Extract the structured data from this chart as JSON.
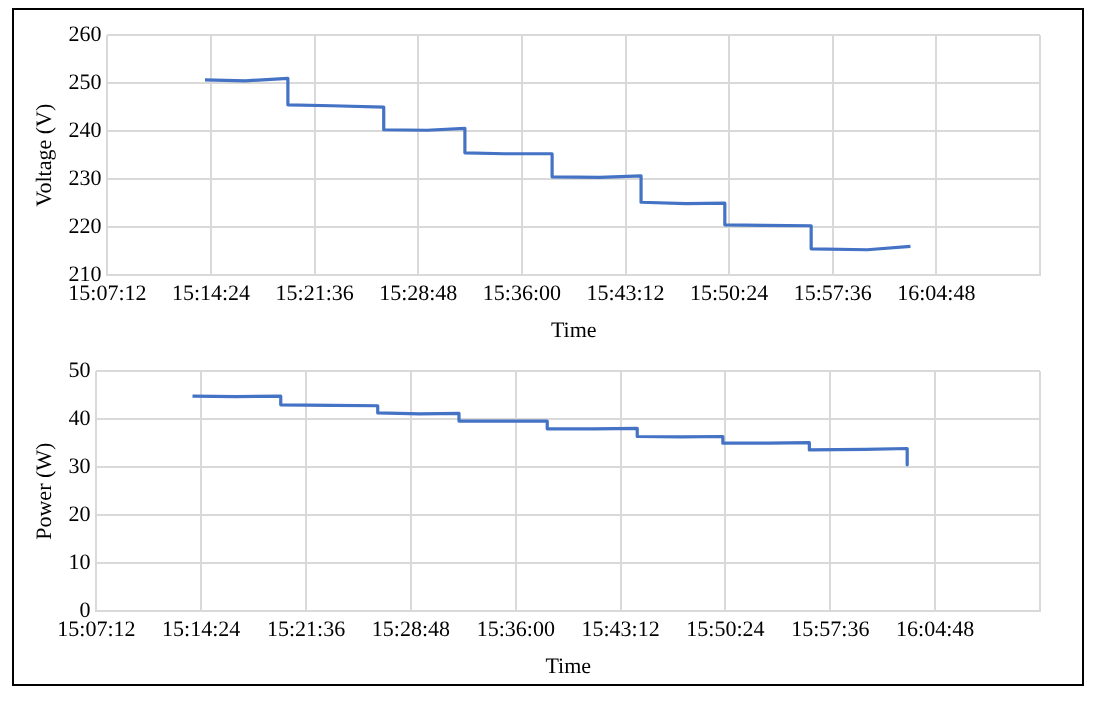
{
  "chart_data": [
    {
      "type": "line",
      "xlabel": "Time",
      "ylabel": "Voltage (V)",
      "grid": true,
      "legend": false,
      "marker": "none",
      "xlim": [
        15.12,
        16.2
      ],
      "xticks": [
        {
          "value": 15.12,
          "label": "15:07:12"
        },
        {
          "value": 15.24,
          "label": "15:14:24"
        },
        {
          "value": 15.36,
          "label": "15:21:36"
        },
        {
          "value": 15.48,
          "label": "15:28:48"
        },
        {
          "value": 15.6,
          "label": "15:36:00"
        },
        {
          "value": 15.72,
          "label": "15:43:12"
        },
        {
          "value": 15.84,
          "label": "15:50:24"
        },
        {
          "value": 15.96,
          "label": "15:57:36"
        },
        {
          "value": 16.08,
          "label": "16:04:48"
        },
        {
          "value": 16.2,
          "label": null
        }
      ],
      "ylim": [
        210,
        260
      ],
      "yticks": [
        210,
        220,
        230,
        240,
        250,
        260
      ],
      "series": [
        {
          "color": "#4472c4",
          "x": [
            15.233,
            15.28,
            15.329,
            15.329,
            15.38,
            15.44,
            15.44,
            15.49,
            15.534,
            15.534,
            15.58,
            15.635,
            15.635,
            15.69,
            15.738,
            15.738,
            15.79,
            15.835,
            15.835,
            15.88,
            15.935,
            15.935,
            16.0,
            16.05
          ],
          "values": [
            250.7,
            250.5,
            251,
            245.5,
            245.3,
            245,
            240.3,
            240.2,
            240.6,
            235.5,
            235.3,
            235.3,
            230.5,
            230.4,
            230.7,
            225.2,
            224.9,
            225,
            220.5,
            220.4,
            220.3,
            215.5,
            215.3,
            216
          ]
        }
      ]
    },
    {
      "type": "line",
      "xlabel": "Time",
      "ylabel": "Power (W)",
      "grid": true,
      "legend": false,
      "marker": "none",
      "xlim": [
        15.12,
        16.2
      ],
      "xticks": [
        {
          "value": 15.12,
          "label": "15:07:12"
        },
        {
          "value": 15.24,
          "label": "15:14:24"
        },
        {
          "value": 15.36,
          "label": "15:21:36"
        },
        {
          "value": 15.48,
          "label": "15:28:48"
        },
        {
          "value": 15.6,
          "label": "15:36:00"
        },
        {
          "value": 15.72,
          "label": "15:43:12"
        },
        {
          "value": 15.84,
          "label": "15:50:24"
        },
        {
          "value": 15.96,
          "label": "15:57:36"
        },
        {
          "value": 16.08,
          "label": "16:04:48"
        },
        {
          "value": 16.2,
          "label": null
        }
      ],
      "ylim": [
        0,
        50
      ],
      "yticks": [
        0,
        10,
        20,
        30,
        40,
        50
      ],
      "series": [
        {
          "color": "#4472c4",
          "x": [
            15.23,
            15.28,
            15.331,
            15.331,
            15.39,
            15.442,
            15.442,
            15.49,
            15.535,
            15.535,
            15.59,
            15.636,
            15.636,
            15.69,
            15.739,
            15.739,
            15.79,
            15.837,
            15.837,
            15.89,
            15.936,
            15.936,
            16.0,
            16.048,
            16.048
          ],
          "values": [
            44.8,
            44.7,
            44.8,
            43.0,
            42.9,
            42.8,
            41.3,
            41.1,
            41.2,
            39.6,
            39.6,
            39.6,
            38.0,
            38.0,
            38.1,
            36.4,
            36.3,
            36.4,
            35.0,
            35.0,
            35.1,
            33.6,
            33.7,
            33.9,
            30.5
          ]
        }
      ]
    }
  ]
}
